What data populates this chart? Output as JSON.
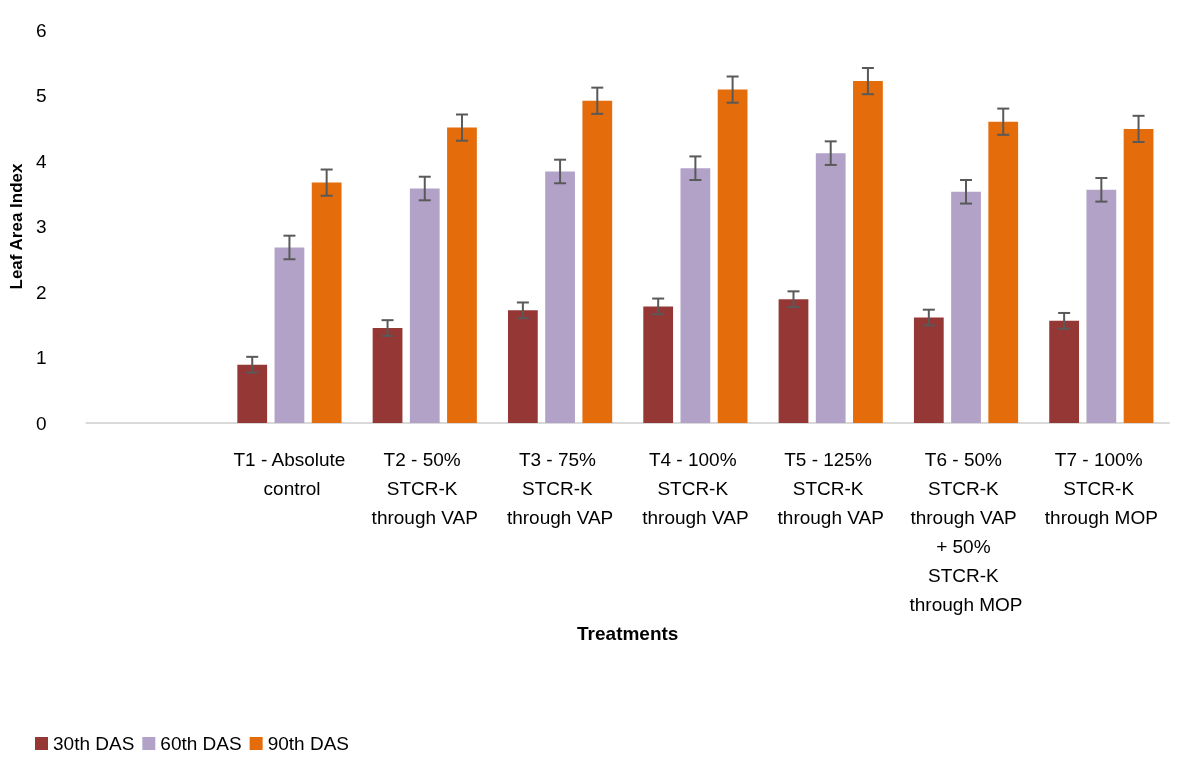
{
  "chart_data": {
    "type": "bar",
    "xlabel": "Treatments",
    "ylabel": "Leaf Area Index",
    "categories": [
      null,
      "T1 - Absolute control",
      "T2 - 50% STCR-K through VAP",
      "T3 - 75% STCR-K through VAP",
      "T4 - 100% STCR-K through VAP",
      "T5 - 125% STCR-K through VAP",
      "T6 - 50% STCR-K through VAP + 50% STCR-K through MOP",
      "T7 - 100% STCR-K through MOP"
    ],
    "series": [
      {
        "name": "30th DAS",
        "color": "#953735",
        "values": [
          null,
          0.89,
          1.45,
          1.72,
          1.78,
          1.89,
          1.61,
          1.56
        ],
        "errors": [
          null,
          0.12,
          0.12,
          0.12,
          0.12,
          0.12,
          0.12,
          0.12
        ]
      },
      {
        "name": "60th DAS",
        "color": "#b3a2c7",
        "values": [
          null,
          2.68,
          3.58,
          3.84,
          3.89,
          4.12,
          3.53,
          3.56
        ],
        "errors": [
          null,
          0.18,
          0.18,
          0.18,
          0.18,
          0.18,
          0.18,
          0.18
        ]
      },
      {
        "name": "90th DAS",
        "color": "#e46c0a",
        "values": [
          null,
          3.67,
          4.51,
          4.92,
          5.09,
          5.22,
          4.6,
          4.49
        ],
        "errors": [
          null,
          0.2,
          0.2,
          0.2,
          0.2,
          0.2,
          0.2,
          0.2
        ]
      }
    ],
    "ylim": [
      0,
      6
    ],
    "yticks": [
      0,
      1,
      2,
      3,
      4,
      5,
      6
    ],
    "legend": "bottom left"
  }
}
